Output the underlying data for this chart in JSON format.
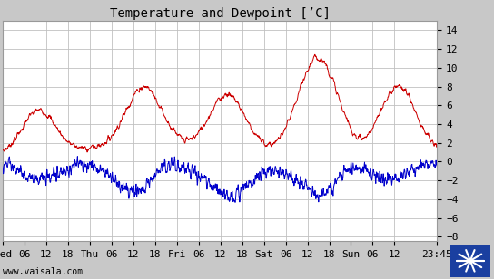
{
  "title": "Temperature and Dewpoint [ʼC]",
  "ylabel_right_ticks": [
    -8,
    -6,
    -4,
    -2,
    0,
    2,
    4,
    6,
    8,
    10,
    12,
    14
  ],
  "ylim": [
    -8.5,
    15.0
  ],
  "xlabel_ticks_labels": [
    "Wed",
    "06",
    "12",
    "18",
    "Thu",
    "06",
    "12",
    "18",
    "Fri",
    "06",
    "12",
    "18",
    "Sat",
    "06",
    "12",
    "18",
    "Sun",
    "06",
    "12",
    "23:45"
  ],
  "bg_color": "#c8c8c8",
  "plot_bg_color": "#ffffff",
  "grid_color": "#c0c0c0",
  "temp_color": "#cc0000",
  "dew_color": "#0000cc",
  "watermark": "www.vaisala.com",
  "title_fontsize": 10,
  "tick_fontsize": 8,
  "line_width": 0.7
}
